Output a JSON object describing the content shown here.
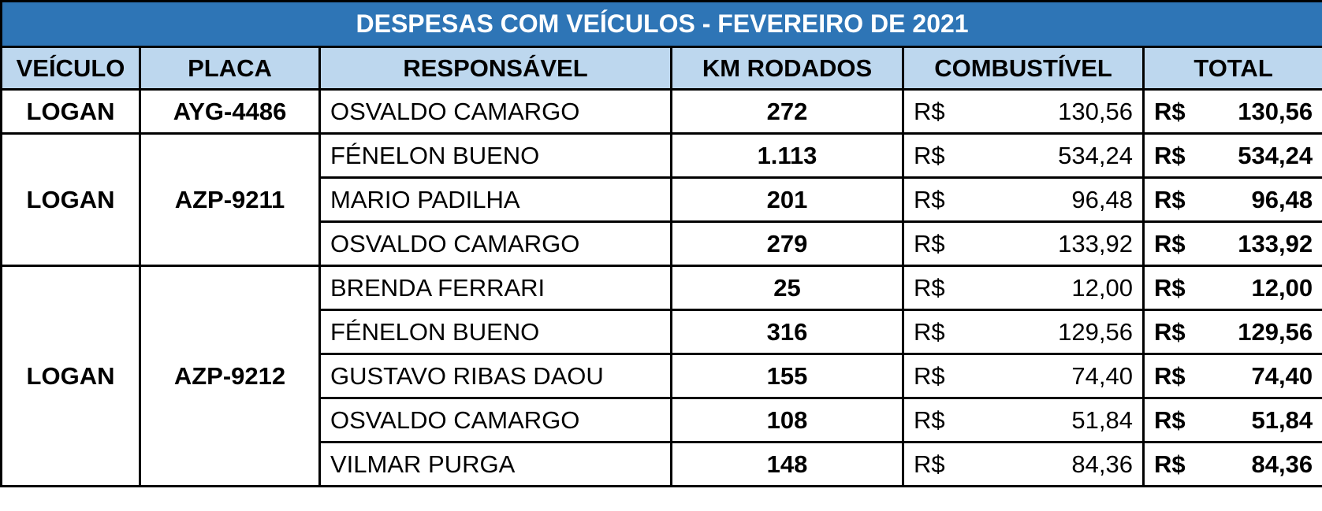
{
  "table": {
    "title": "DESPESAS COM VEÍCULOS - FEVEREIRO DE 2021",
    "headers": [
      "VEÍCULO",
      "PLACA",
      "RESPONSÁVEL",
      "KM RODADOS",
      "COMBUSTÍVEL",
      "TOTAL"
    ],
    "currency": "R$",
    "groups": [
      {
        "vehicle": "LOGAN",
        "plate": "AYG-4486",
        "rows": [
          {
            "responsible": "OSVALDO CAMARGO",
            "km": "272",
            "fuel": "130,56",
            "total": "130,56"
          }
        ]
      },
      {
        "vehicle": "LOGAN",
        "plate": "AZP-9211",
        "rows": [
          {
            "responsible": "FÉNELON BUENO",
            "km": "1.113",
            "fuel": "534,24",
            "total": "534,24"
          },
          {
            "responsible": "MARIO PADILHA",
            "km": "201",
            "fuel": "96,48",
            "total": "96,48"
          },
          {
            "responsible": "OSVALDO CAMARGO",
            "km": "279",
            "fuel": "133,92",
            "total": "133,92"
          }
        ]
      },
      {
        "vehicle": "LOGAN",
        "plate": "AZP-9212",
        "rows": [
          {
            "responsible": "BRENDA FERRARI",
            "km": "25",
            "fuel": "12,00",
            "total": "12,00"
          },
          {
            "responsible": "FÉNELON BUENO",
            "km": "316",
            "fuel": "129,56",
            "total": "129,56"
          },
          {
            "responsible": "GUSTAVO RIBAS DAOU",
            "km": "155",
            "fuel": "74,40",
            "total": "74,40"
          },
          {
            "responsible": "OSVALDO CAMARGO",
            "km": "108",
            "fuel": "51,84",
            "total": "51,84"
          },
          {
            "responsible": "VILMAR PURGA",
            "km": "148",
            "fuel": "84,36",
            "total": "84,36"
          }
        ]
      }
    ]
  }
}
